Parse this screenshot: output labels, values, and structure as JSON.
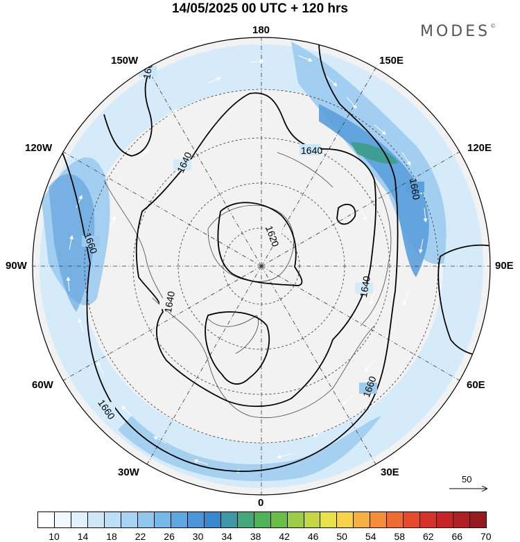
{
  "title": "14/05/2025  00 UTC  + 120 hrs",
  "brand": "MODES",
  "brand_mark": "©",
  "longitude_labels": {
    "lon_180": "180",
    "lon_150w": "150W",
    "lon_150e": "150E",
    "lon_120w": "120W",
    "lon_120e": "120E",
    "lon_90w": "90W",
    "lon_90e": "90E",
    "lon_60w": "60W",
    "lon_60e": "60E",
    "lon_30w": "30W",
    "lon_30e": "30E",
    "lon_0": "0"
  },
  "contour_labels": [
    "1660",
    "1640",
    "1620",
    "1640",
    "1660",
    "1640",
    "1660",
    "1660",
    "1640",
    "1660"
  ],
  "wind_scale_label": "50",
  "colorbar": {
    "tick_labels": [
      "10",
      "14",
      "18",
      "22",
      "26",
      "30",
      "34",
      "38",
      "42",
      "46",
      "50",
      "54",
      "58",
      "62",
      "66",
      "70"
    ],
    "colors": [
      "#ffffff",
      "#f0f8fd",
      "#e1f1fb",
      "#cfe8f8",
      "#badff6",
      "#a6d4f3",
      "#8fc7ef",
      "#77b8ea",
      "#5ea7e2",
      "#4a96d8",
      "#3a88cc",
      "#3d97a8",
      "#45a77c",
      "#4db356",
      "#6cbd47",
      "#9ccb45",
      "#c4d844",
      "#e8e24a",
      "#f7d24a",
      "#f6b043",
      "#f48e3a",
      "#ee6c33",
      "#e64b2e",
      "#d8312b",
      "#c72428",
      "#b01f24",
      "#951b21"
    ]
  },
  "colors": {
    "land": "#f2f2f2",
    "jet_light": "#cbe6f8",
    "jet_mid": "#8cc4ee",
    "jet_strong": "#4b92d6",
    "jet_core": "#3d9c8a"
  }
}
